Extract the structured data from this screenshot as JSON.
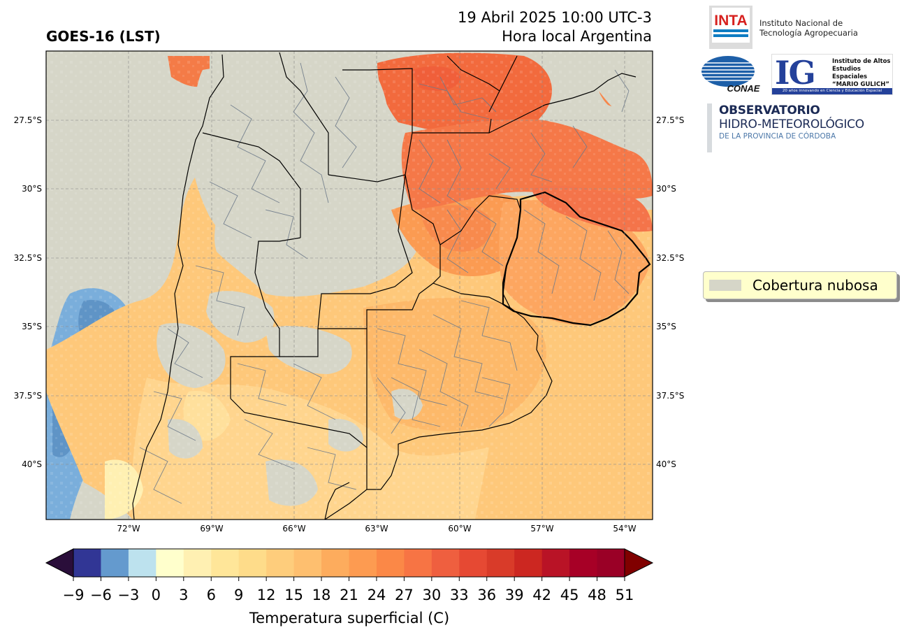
{
  "header": {
    "title": "GOES-16 (LST)",
    "date_line": "19 Abril 2025 10:00 UTC-3",
    "local_line": "Hora local Argentina"
  },
  "map": {
    "lat_ticks": [
      "27.5°S",
      "30°S",
      "32.5°S",
      "35°S",
      "37.5°S",
      "40°S"
    ],
    "lon_ticks": [
      "72°W",
      "69°W",
      "66°W",
      "63°W",
      "60°W",
      "57°W",
      "54°W"
    ],
    "cloud_color": "#d6d6c8"
  },
  "colorbar": {
    "label": "Temperatura superficial (C)",
    "ticks": [
      "−9",
      "−6",
      "−3",
      "0",
      "3",
      "6",
      "9",
      "12",
      "15",
      "18",
      "21",
      "24",
      "27",
      "30",
      "33",
      "36",
      "39",
      "42",
      "45",
      "48",
      "51"
    ],
    "under_color": "#2a0e3a",
    "over_color": "#800000",
    "colors": [
      "#313695",
      "#649ace",
      "#bde2ee",
      "#ffffcc",
      "#fff0b2",
      "#ffe699",
      "#fedc8a",
      "#fecd7c",
      "#febf6f",
      "#fdac5d",
      "#fd9b51",
      "#fb8847",
      "#f77444",
      "#ef5f3f",
      "#e64933",
      "#d93b29",
      "#cc2721",
      "#b91326",
      "#a70026",
      "#9a0026"
    ]
  },
  "legend": {
    "label": "Cobertura nubosa",
    "swatch_color": "#d6d6c8"
  },
  "logos": {
    "inta_mark": "INTA",
    "inta_name_1": "Instituto Nacional de",
    "inta_name_2": "Tecnología Agropecuaria",
    "conae_mark": "CONAE",
    "ig_mark": "IG",
    "ig_text_1": "Instituto de Altos",
    "ig_text_2": "Estudios Espaciales",
    "ig_text_3": "“MARIO GULICH”",
    "ig_bar": "20 años innovando en Ciencia y Educación Espacial",
    "obs_1": "OBSERVATORIO",
    "obs_2": "HIDRO-METEOROLÓGICO",
    "obs_3": "DE LA PROVINCIA DE CÓRDOBA"
  }
}
